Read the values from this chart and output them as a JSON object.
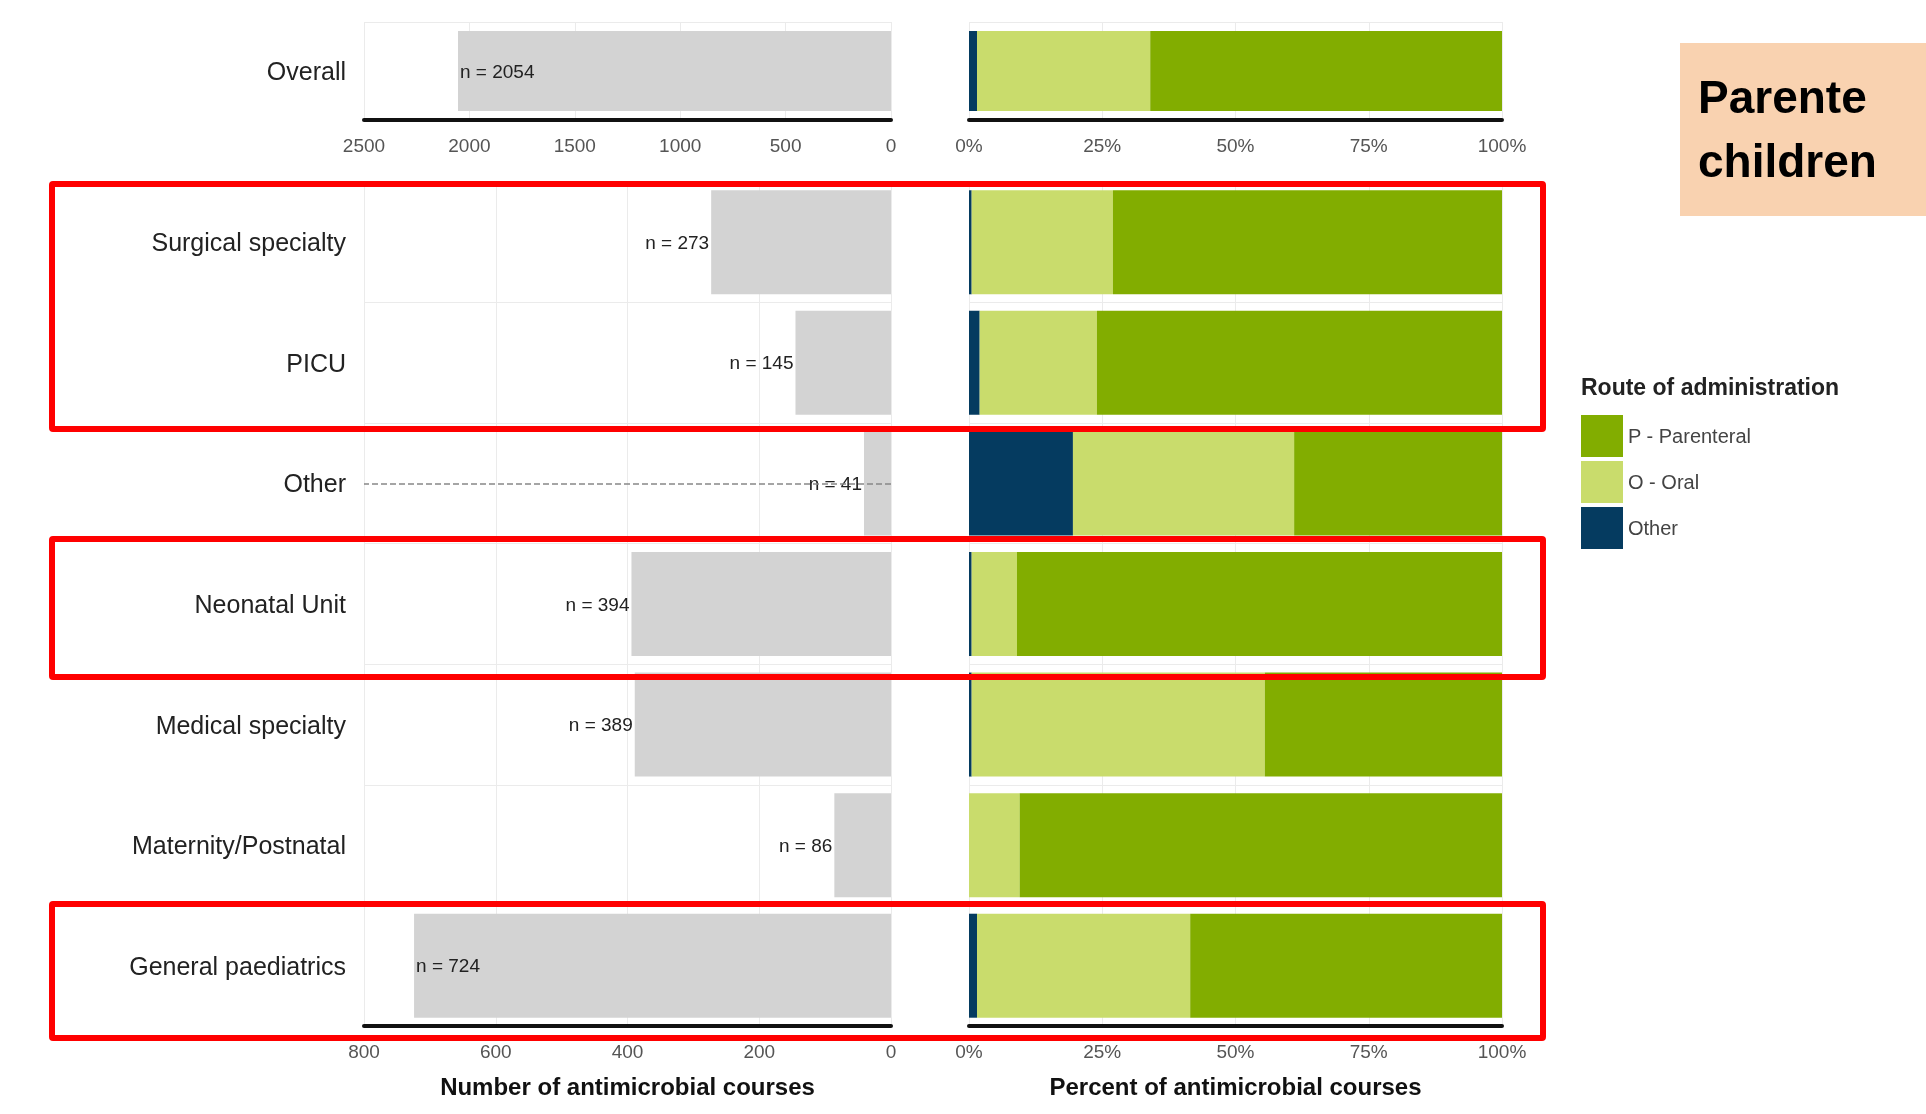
{
  "chart_data": [
    {
      "type": "bar",
      "orientation": "horizontal",
      "categories": [
        "Overall"
      ],
      "values": [
        2054
      ],
      "color": "#d3d3d3",
      "value_labels": [
        "n = 2054"
      ],
      "xlim": [
        2500,
        0
      ],
      "xticks": [
        2500,
        2000,
        1500,
        1000,
        500,
        0
      ],
      "grid": true
    },
    {
      "type": "bar",
      "orientation": "horizontal",
      "stacked": true,
      "categories": [
        null
      ],
      "series": [
        {
          "color": "#053b60",
          "values": [
            1.5
          ]
        },
        {
          "color": "#c9dc6c",
          "values": [
            32.5
          ]
        },
        {
          "color": "#82ad00",
          "values": [
            66
          ]
        }
      ],
      "xlim": [
        0,
        100
      ],
      "xticks": [
        {
          "value": 0,
          "label": "0%"
        },
        {
          "value": 25,
          "label": "25%"
        },
        {
          "value": 50,
          "label": "50%"
        },
        {
          "value": 75,
          "label": "75%"
        },
        {
          "value": 100,
          "label": "100%"
        }
      ],
      "grid": true,
      "tick_labels": "x"
    },
    {
      "type": "bar",
      "orientation": "horizontal",
      "categories": [
        "Surgical specialty",
        "PICU",
        "Other",
        "Neonatal Unit",
        "Medical specialty",
        "Maternity/Postnatal",
        "General paediatrics"
      ],
      "values": [
        273,
        145,
        41,
        394,
        389,
        86,
        724
      ],
      "color": "#d3d3d3",
      "value_labels": [
        "n = 273",
        "n = 145",
        "n = 41",
        "n = 394",
        "n = 389",
        "n = 86",
        "n = 724"
      ],
      "xlim": [
        800,
        0
      ],
      "xticks": [
        800,
        600,
        400,
        200,
        0
      ],
      "xlabel": "Number of antimicrobial courses",
      "grid": true,
      "ref_lines": [
        {
          "axis": "y",
          "value": "Other",
          "color": "#888888",
          "line_style": "dashed"
        }
      ]
    },
    {
      "type": "bar",
      "orientation": "horizontal",
      "stacked": true,
      "categories": [
        null,
        null,
        null,
        null,
        null,
        null,
        null
      ],
      "series": [
        {
          "name": "Other",
          "color": "#053b60",
          "values": [
            0.5,
            2,
            19.5,
            0.5,
            0.5,
            0,
            1.5
          ]
        },
        {
          "name": "O - Oral",
          "color": "#c9dc6c",
          "values": [
            26.5,
            22,
            41.5,
            8.5,
            55,
            9.5,
            40
          ]
        },
        {
          "name": "P - Parenteral",
          "color": "#82ad00",
          "values": [
            73,
            76,
            39,
            91,
            44.5,
            90.5,
            58.5
          ]
        }
      ],
      "xlim": [
        0,
        100
      ],
      "xticks": [
        {
          "value": 0,
          "label": "0%"
        },
        {
          "value": 25,
          "label": "25%"
        },
        {
          "value": 50,
          "label": "50%"
        },
        {
          "value": 75,
          "label": "75%"
        },
        {
          "value": 100,
          "label": "100%"
        }
      ],
      "xlabel": "Percent of antimicrobial courses",
      "grid": true,
      "tick_labels": "x",
      "legend": "right",
      "legend_title": "Route of administration",
      "annotations": [
        "Parente\nchildren"
      ]
    }
  ]
}
